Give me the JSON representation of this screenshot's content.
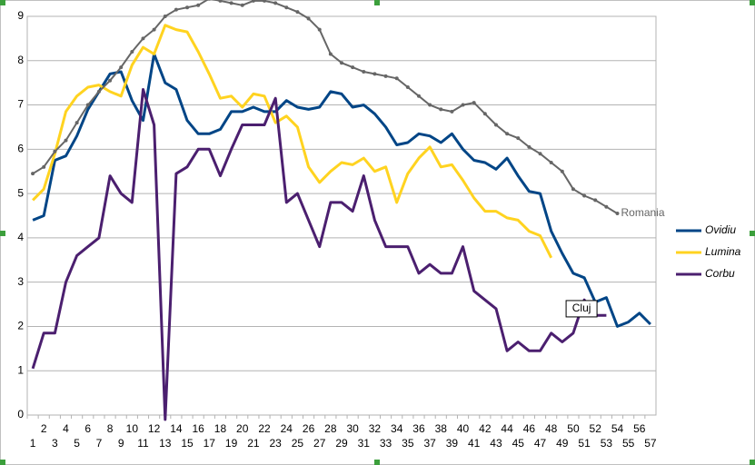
{
  "chart_data": {
    "type": "line",
    "categories": [
      "1",
      "2",
      "3",
      "4",
      "5",
      "6",
      "7",
      "8",
      "9",
      "10",
      "11",
      "12",
      "13",
      "14",
      "15",
      "16",
      "17",
      "18",
      "19",
      "20",
      "21",
      "22",
      "23",
      "24",
      "25",
      "26",
      "27",
      "28",
      "29",
      "30",
      "31",
      "32",
      "33",
      "34",
      "35",
      "36",
      "37",
      "38",
      "39",
      "40",
      "41",
      "42",
      "43",
      "44",
      "45",
      "46",
      "47",
      "48",
      "49",
      "50",
      "51",
      "52",
      "53",
      "54",
      "55",
      "56",
      "57"
    ],
    "ylim": [
      0,
      9
    ],
    "yticks": [
      0,
      1,
      2,
      3,
      4,
      5,
      6,
      7,
      8,
      9
    ],
    "grid": true,
    "legend": "right",
    "series": [
      {
        "name": "Ovidiu",
        "color": "#004586",
        "values": [
          4.4,
          4.5,
          5.75,
          5.85,
          6.3,
          6.9,
          7.3,
          7.7,
          7.75,
          7.1,
          6.65,
          8.15,
          7.5,
          7.35,
          6.65,
          6.35,
          6.35,
          6.45,
          6.85,
          6.85,
          6.95,
          6.85,
          6.85,
          7.1,
          6.95,
          6.9,
          6.95,
          7.3,
          7.25,
          6.95,
          7.0,
          6.8,
          6.5,
          6.1,
          6.15,
          6.35,
          6.3,
          6.15,
          6.35,
          6.0,
          5.75,
          5.7,
          5.55,
          5.8,
          5.4,
          5.05,
          5.0,
          4.15,
          3.65,
          3.2,
          3.1,
          2.55,
          2.65,
          2.0,
          2.1,
          2.3,
          2.05
        ]
      },
      {
        "name": "Lumina",
        "color": "#ffd320",
        "values": [
          4.85,
          5.1,
          5.9,
          6.85,
          7.2,
          7.4,
          7.45,
          7.3,
          7.2,
          7.9,
          8.3,
          8.15,
          8.8,
          8.7,
          8.65,
          8.2,
          7.7,
          7.15,
          7.2,
          6.95,
          7.25,
          7.2,
          6.6,
          6.75,
          6.5,
          5.6,
          5.25,
          5.5,
          5.7,
          5.65,
          5.8,
          5.5,
          5.6,
          4.8,
          5.45,
          5.8,
          6.05,
          5.6,
          5.65,
          5.3,
          4.9,
          4.6,
          4.6,
          4.45,
          4.4,
          4.15,
          4.05,
          3.55,
          null,
          null,
          null,
          null,
          null,
          null,
          null,
          null,
          null
        ]
      },
      {
        "name": "Corbu",
        "color": "#4b1f6f",
        "values": [
          1.05,
          1.85,
          1.85,
          3.0,
          3.6,
          3.8,
          4.0,
          5.4,
          5.0,
          4.8,
          7.35,
          6.55,
          -0.1,
          5.45,
          5.6,
          6.0,
          6.0,
          5.4,
          6.0,
          6.55,
          6.55,
          6.55,
          7.15,
          4.8,
          5.0,
          4.4,
          3.8,
          4.8,
          4.8,
          4.6,
          5.4,
          4.4,
          3.8,
          3.8,
          3.8,
          3.2,
          3.4,
          3.2,
          3.2,
          3.8,
          2.8,
          2.6,
          2.4,
          1.45,
          1.65,
          1.45,
          1.45,
          1.85,
          1.65,
          1.85,
          2.6,
          2.25,
          2.25,
          null,
          null,
          null,
          null
        ]
      },
      {
        "name": "Romania",
        "color": "#666666",
        "markers": true,
        "show_in_legend": false,
        "end_label": true,
        "values": [
          5.45,
          5.6,
          5.95,
          6.2,
          6.6,
          7.0,
          7.3,
          7.55,
          7.85,
          8.2,
          8.5,
          8.7,
          9.0,
          9.15,
          9.2,
          9.25,
          9.4,
          9.35,
          9.3,
          9.25,
          9.35,
          9.35,
          9.3,
          9.2,
          9.1,
          8.95,
          8.7,
          8.15,
          7.95,
          7.85,
          7.75,
          7.7,
          7.65,
          7.6,
          7.4,
          7.2,
          7.0,
          6.9,
          6.85,
          7.0,
          7.05,
          6.8,
          6.55,
          6.35,
          6.25,
          6.05,
          5.9,
          5.7,
          5.5,
          5.1,
          4.95,
          4.85,
          4.7,
          4.55,
          null,
          null,
          null
        ]
      }
    ],
    "annotations": [
      {
        "text": "Cluj",
        "category": 51,
        "value": 2.4
      }
    ]
  }
}
